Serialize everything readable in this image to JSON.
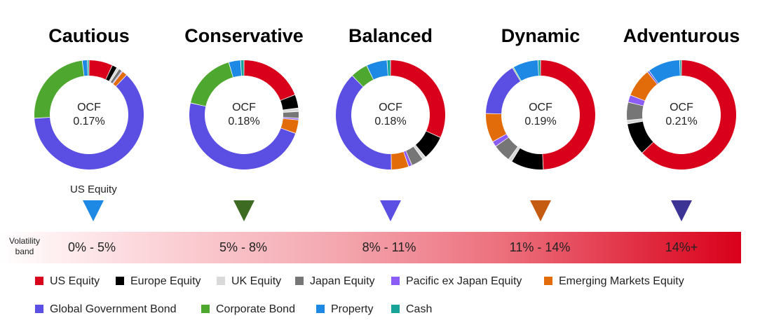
{
  "chart_data": [
    {
      "type": "pie",
      "title": "Cautious",
      "ocf_label": "OCF",
      "ocf_value": "0.17%",
      "marker_color": "#1e88e5",
      "values": [
        7,
        1.5,
        0.7,
        1,
        0.3,
        1.5,
        62,
        24,
        1.5,
        0.5
      ]
    },
    {
      "type": "pie",
      "title": "Conservative",
      "ocf_label": "OCF",
      "ocf_value": "0.18%",
      "marker_color": "#3e6b22",
      "values": [
        19,
        4,
        1,
        2,
        0.5,
        4,
        48,
        17,
        3.5,
        1
      ]
    },
    {
      "type": "pie",
      "title": "Balanced",
      "ocf_label": "OCF",
      "ocf_value": "0.18%",
      "marker_color": "#5b4fe3",
      "values": [
        31,
        7,
        1,
        3.5,
        1,
        5,
        37,
        5,
        6,
        1
      ]
    },
    {
      "type": "pie",
      "title": "Dynamic",
      "ocf_label": "OCF",
      "ocf_value": "0.19%",
      "marker_color": "#c55a11",
      "values": [
        46,
        9,
        1,
        5,
        1.5,
        8,
        15,
        0.3,
        7,
        0.7
      ]
    },
    {
      "type": "pie",
      "title": "Adventurous",
      "ocf_label": "OCF",
      "ocf_value": "0.21%",
      "marker_color": "#3b3494",
      "values": [
        59,
        9,
        1,
        5,
        2,
        8,
        0.5,
        0,
        9,
        0.5
      ]
    }
  ],
  "legend": [
    {
      "name": "US Equity",
      "color": "#d9001b"
    },
    {
      "name": "Europe Equity",
      "color": "#000000"
    },
    {
      "name": "UK Equity",
      "color": "#d9d9d9"
    },
    {
      "name": "Japan Equity",
      "color": "#767676"
    },
    {
      "name": "Pacific ex Japan Equity",
      "color": "#8b5cf6"
    },
    {
      "name": "Emerging Markets Equity",
      "color": "#e36c0a"
    },
    {
      "name": "Global Government Bond",
      "color": "#5b4fe3"
    },
    {
      "name": "Corporate Bond",
      "color": "#4ea72e"
    },
    {
      "name": "Property",
      "color": "#1e88e5"
    },
    {
      "name": "Cash",
      "color": "#17a398"
    }
  ],
  "callout": "US Equity",
  "volatility": {
    "label_line1": "Volatility",
    "label_line2": "band",
    "bands": [
      "0% - 5%",
      "5% - 8%",
      "8% - 11%",
      "11% - 14%",
      "14%+"
    ]
  }
}
